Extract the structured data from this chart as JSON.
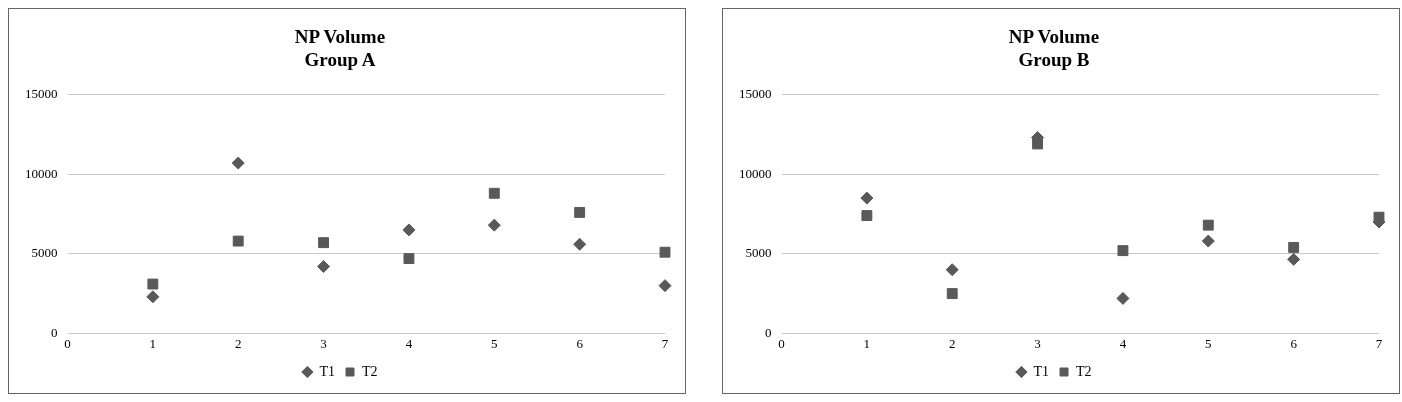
{
  "chart_data": [
    {
      "type": "scatter",
      "title": "NP Volume\nGroup A",
      "xlim": [
        0,
        7
      ],
      "xticks": [
        0,
        1,
        2,
        3,
        4,
        5,
        6,
        7
      ],
      "ylim": [
        0,
        15000
      ],
      "yticks": [
        0,
        5000,
        10000,
        15000
      ],
      "grid": "y",
      "legend": "bottom",
      "x": [
        1,
        2,
        3,
        4,
        5,
        6,
        7
      ],
      "series": [
        {
          "name": "T1",
          "color": "#595959",
          "marker": "diamond",
          "values": [
            2300,
            10700,
            4200,
            6500,
            6800,
            5600,
            3000
          ]
        },
        {
          "name": "T2",
          "color": "#595959",
          "marker": "square",
          "values": [
            3100,
            5800,
            5700,
            4700,
            8800,
            7600,
            5100
          ]
        }
      ]
    },
    {
      "type": "scatter",
      "title": "NP Volume\nGroup B",
      "xlim": [
        0,
        7
      ],
      "xticks": [
        0,
        1,
        2,
        3,
        4,
        5,
        6,
        7
      ],
      "ylim": [
        0,
        15000
      ],
      "yticks": [
        0,
        5000,
        10000,
        15000
      ],
      "grid": "y",
      "legend": "bottom",
      "x": [
        1,
        2,
        3,
        4,
        5,
        6,
        7
      ],
      "series": [
        {
          "name": "T1",
          "color": "#595959",
          "marker": "diamond",
          "values": [
            8500,
            4000,
            12300,
            2200,
            5800,
            4650,
            7000
          ]
        },
        {
          "name": "T2",
          "color": "#595959",
          "marker": "square",
          "values": [
            7400,
            2500,
            11900,
            5200,
            6800,
            5400,
            7300
          ]
        }
      ]
    }
  ]
}
